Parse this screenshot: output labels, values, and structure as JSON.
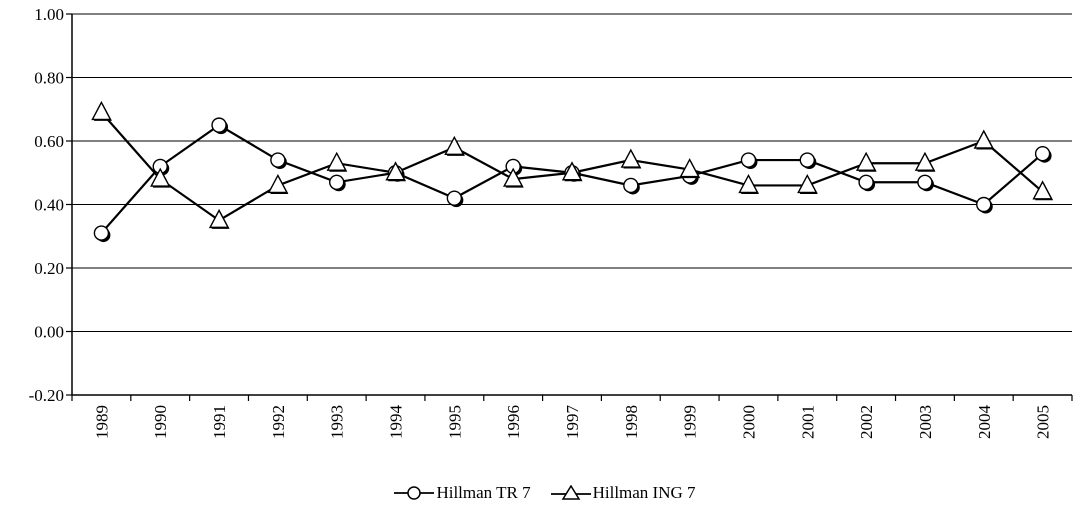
{
  "chart_data": {
    "type": "line",
    "categories": [
      "1989",
      "1990",
      "1991",
      "1992",
      "1993",
      "1994",
      "1995",
      "1996",
      "1997",
      "1998",
      "1999",
      "2000",
      "2001",
      "2002",
      "2003",
      "2004",
      "2005"
    ],
    "series": [
      {
        "name": "Hillman TR 7",
        "marker": "circle",
        "values": [
          0.31,
          0.52,
          0.65,
          0.54,
          0.47,
          0.5,
          0.42,
          0.52,
          0.5,
          0.46,
          0.49,
          0.54,
          0.54,
          0.47,
          0.47,
          0.4,
          0.56
        ]
      },
      {
        "name": "Hillman ING 7",
        "marker": "triangle",
        "values": [
          0.69,
          0.48,
          0.35,
          0.46,
          0.53,
          0.5,
          0.58,
          0.48,
          0.5,
          0.54,
          0.51,
          0.46,
          0.46,
          0.53,
          0.53,
          0.6,
          0.44
        ]
      }
    ],
    "y_ticks": [
      "1.00",
      "0.80",
      "0.60",
      "0.40",
      "0.20",
      "0.00",
      "-0.20"
    ],
    "ylim": [
      -0.2,
      1.0
    ],
    "grid": true,
    "legend_position": "bottom",
    "line_color": "#000000"
  }
}
